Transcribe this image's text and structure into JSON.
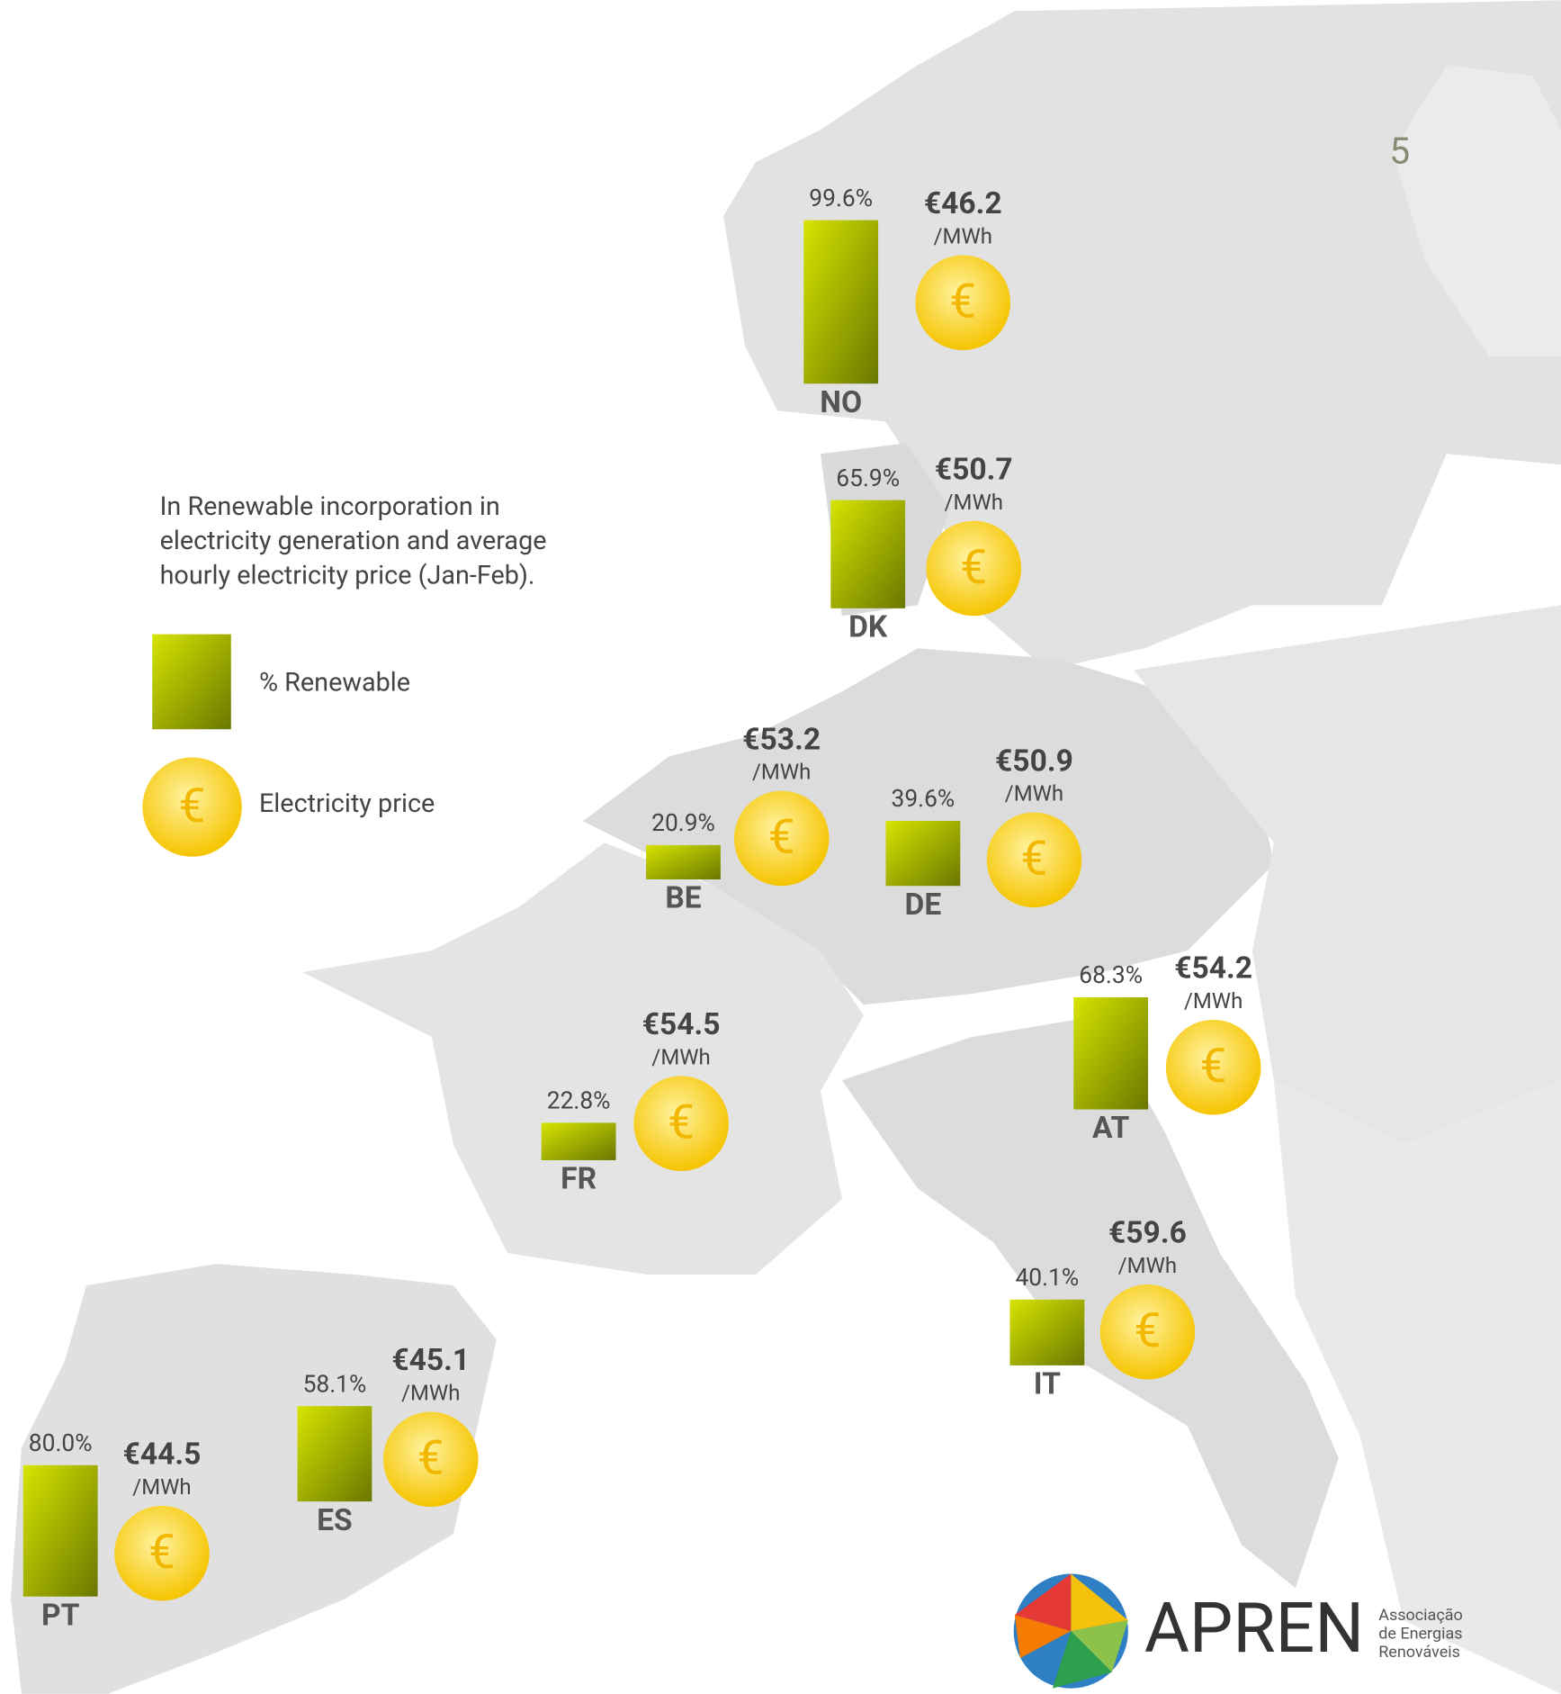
{
  "chart_data": {
    "type": "bar",
    "title": [
      "In Renewable incorporation in",
      "electricity generation and average",
      "hourly electricity price (Jan-Feb)."
    ],
    "categories": [
      "NO",
      "DK",
      "BE",
      "DE",
      "AT",
      "FR",
      "IT",
      "ES",
      "PT"
    ],
    "series": [
      {
        "name": "% Renewable",
        "color": [
          "#d6e400",
          "#6a7700"
        ],
        "values": [
          99.6,
          65.9,
          20.9,
          39.6,
          68.3,
          22.8,
          40.1,
          58.1,
          80.0
        ],
        "value_labels": [
          "99.6%",
          "65.9%",
          "20.9%",
          "39.6%",
          "68.3%",
          "22.8%",
          "40.1%",
          "58.1%",
          "80.0%"
        ]
      },
      {
        "name": "Electricity price",
        "color": [
          "#fff3a0",
          "#f5c400"
        ],
        "values": [
          46.2,
          50.7,
          53.2,
          50.9,
          54.2,
          54.5,
          59.6,
          45.1,
          44.5
        ],
        "value_labels": [
          "€46.2",
          "€50.7",
          "€53.2",
          "€50.9",
          "€54.2",
          "€54.5",
          "€59.6",
          "€45.1",
          "€44.5"
        ]
      }
    ],
    "unit": "/MWh",
    "symbol": "€",
    "page_number": "5",
    "logo": {
      "name": "APREN",
      "lines": [
        "Associação",
        "de Energias",
        "Renováveis"
      ]
    }
  }
}
